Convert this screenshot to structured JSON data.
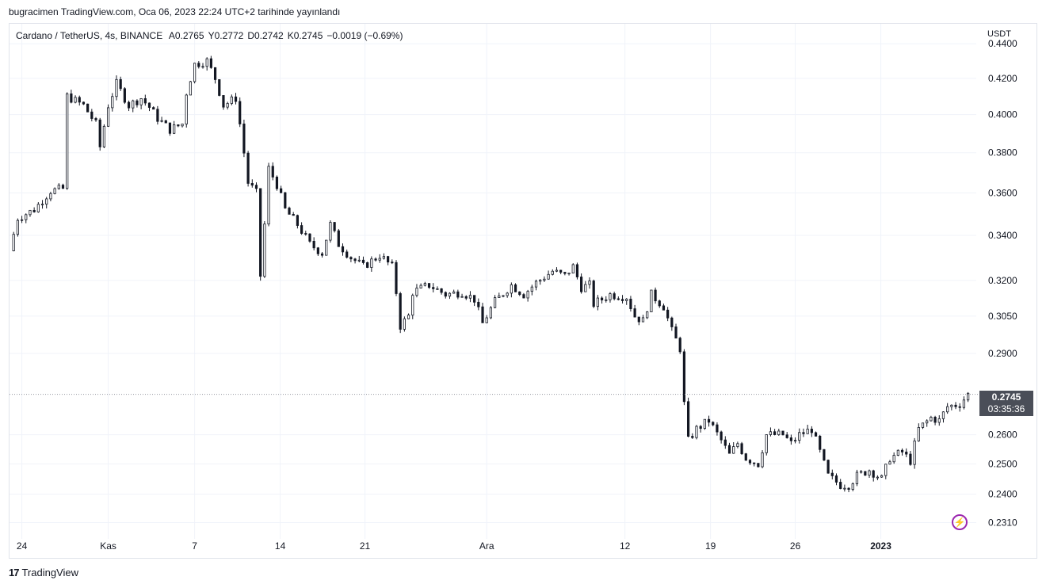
{
  "header": {
    "published_by": "bugracimen TradingView.com, Oca 06, 2023 22:24 UTC+2 tarihinde yayınlandı"
  },
  "legend": {
    "symbol": "Cardano / TetherUS, 4s, BINANCE",
    "open": "A0.2765",
    "high": "Y0.2772",
    "low": "D0.2742",
    "close": "K0.2745",
    "change": "−0.0019 (−0.69%)"
  },
  "price_badge": {
    "price": "0.2745",
    "countdown": "03:35:36"
  },
  "footer": {
    "brand": "TradingView",
    "logo_text": "17"
  },
  "icons": {
    "alert": "lightning-bolt-icon"
  },
  "colors": {
    "candles": "#131722",
    "badge_bg": "#4a4e58",
    "accent": "#9c27b0",
    "grid": "#f0f3fa"
  },
  "chart_data": {
    "type": "line",
    "title": "",
    "xlabel": "",
    "ylabel": "USDT",
    "y_scale": "log",
    "ylim": [
      0.226,
      0.452
    ],
    "y_ticks": [
      "0.4400",
      "0.4200",
      "0.4000",
      "0.3800",
      "0.3600",
      "0.3400",
      "0.3200",
      "0.3050",
      "0.2900",
      "0.2600",
      "0.2500",
      "0.2400",
      "0.2310"
    ],
    "x_ticks": [
      {
        "label": "24",
        "t": 1.5
      },
      {
        "label": "Kas",
        "t": 12
      },
      {
        "label": "7",
        "t": 22.5
      },
      {
        "label": "14",
        "t": 32.9
      },
      {
        "label": "21",
        "t": 43.2
      },
      {
        "label": "Ara",
        "t": 58
      },
      {
        "label": "12",
        "t": 74.8
      },
      {
        "label": "19",
        "t": 85.2
      },
      {
        "label": "26",
        "t": 95.5
      },
      {
        "label": "2023",
        "t": 105.9,
        "bold": true
      }
    ],
    "x_range": [
      0,
      117.5
    ],
    "grid": true,
    "last_price": 0.2745,
    "series": [
      {
        "values": [
          [
            0,
            0.333
          ],
          [
            1,
            0.348
          ],
          [
            3,
            0.352
          ],
          [
            5,
            0.361
          ],
          [
            6.5,
            0.362
          ],
          [
            7,
            0.41
          ],
          [
            9,
            0.405
          ],
          [
            10.5,
            0.395
          ],
          [
            11,
            0.383
          ],
          [
            12,
            0.405
          ],
          [
            13,
            0.417
          ],
          [
            14.5,
            0.405
          ],
          [
            16,
            0.409
          ],
          [
            17,
            0.404
          ],
          [
            18,
            0.398
          ],
          [
            19.5,
            0.392
          ],
          [
            21,
            0.395
          ],
          [
            21.5,
            0.412
          ],
          [
            22.5,
            0.428
          ],
          [
            24,
            0.43
          ],
          [
            25,
            0.42
          ],
          [
            26,
            0.405
          ],
          [
            27.5,
            0.409
          ],
          [
            28,
            0.395
          ],
          [
            29,
            0.365
          ],
          [
            30,
            0.36
          ],
          [
            30.5,
            0.322
          ],
          [
            31,
            0.345
          ],
          [
            31.5,
            0.372
          ],
          [
            32.5,
            0.364
          ],
          [
            33.5,
            0.352
          ],
          [
            35,
            0.345
          ],
          [
            36.5,
            0.336
          ],
          [
            38,
            0.332
          ],
          [
            39,
            0.345
          ],
          [
            40,
            0.336
          ],
          [
            41.5,
            0.33
          ],
          [
            43,
            0.326
          ],
          [
            45,
            0.331
          ],
          [
            46.5,
            0.326
          ],
          [
            47,
            0.315
          ],
          [
            47.5,
            0.301
          ],
          [
            48.5,
            0.305
          ],
          [
            49,
            0.315
          ],
          [
            51,
            0.318
          ],
          [
            53,
            0.314
          ],
          [
            55,
            0.315
          ],
          [
            56.5,
            0.312
          ],
          [
            57.5,
            0.302
          ],
          [
            59,
            0.311
          ],
          [
            61,
            0.318
          ],
          [
            62.5,
            0.314
          ],
          [
            64,
            0.319
          ],
          [
            66,
            0.324
          ],
          [
            67.5,
            0.322
          ],
          [
            68.5,
            0.326
          ],
          [
            69.5,
            0.317
          ],
          [
            70.5,
            0.318
          ],
          [
            71,
            0.31
          ],
          [
            73,
            0.314
          ],
          [
            75,
            0.313
          ],
          [
            76,
            0.305
          ],
          [
            77,
            0.303
          ],
          [
            78,
            0.314
          ],
          [
            79.5,
            0.309
          ],
          [
            80.5,
            0.299
          ],
          [
            81.5,
            0.292
          ],
          [
            82,
            0.271
          ],
          [
            82.5,
            0.258
          ],
          [
            83.5,
            0.262
          ],
          [
            85,
            0.265
          ],
          [
            86.5,
            0.258
          ],
          [
            87.5,
            0.253
          ],
          [
            88.5,
            0.257
          ],
          [
            89.5,
            0.252
          ],
          [
            91,
            0.25
          ],
          [
            92,
            0.26
          ],
          [
            94,
            0.26
          ],
          [
            95,
            0.257
          ],
          [
            96,
            0.26
          ],
          [
            97.5,
            0.262
          ],
          [
            98.5,
            0.254
          ],
          [
            99.5,
            0.246
          ],
          [
            101,
            0.243
          ],
          [
            102,
            0.243
          ],
          [
            103,
            0.246
          ],
          [
            104.5,
            0.248
          ],
          [
            106,
            0.245
          ],
          [
            107,
            0.252
          ],
          [
            108.5,
            0.254
          ],
          [
            109.5,
            0.251
          ],
          [
            110.5,
            0.262
          ],
          [
            112,
            0.266
          ],
          [
            113,
            0.265
          ],
          [
            114,
            0.27
          ],
          [
            115.5,
            0.271
          ],
          [
            116.5,
            0.2745
          ]
        ]
      }
    ]
  }
}
